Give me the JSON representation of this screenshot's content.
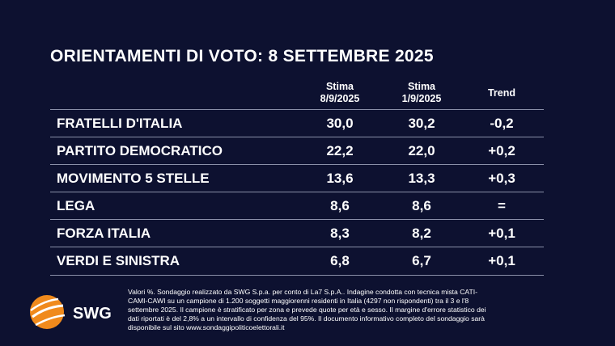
{
  "header": {
    "title": "ORIENTAMENTI DI VOTO: 8 SETTEMBRE 2025"
  },
  "table": {
    "columns": [
      [
        "Stima",
        "8/9/2025"
      ],
      [
        "Stima",
        "1/9/2025"
      ],
      [
        "Trend"
      ]
    ],
    "rows": [
      [
        "FRATELLI D'ITALIA",
        "30,0",
        "30,2",
        "-0,2"
      ],
      [
        "PARTITO DEMOCRATICO",
        "22,2",
        "22,0",
        "+0,2"
      ],
      [
        "MOVIMENTO 5 STELLE",
        "13,6",
        "13,3",
        "+0,3"
      ],
      [
        "LEGA",
        "8,6",
        "8,6",
        "="
      ],
      [
        "FORZA ITALIA",
        "8,3",
        "8,2",
        "+0,1"
      ],
      [
        "VERDI E SINISTRA",
        "6,8",
        "6,7",
        "+0,1"
      ]
    ]
  },
  "footnote": [
    "Valori %. Sondaggio realizzato da SWG S.p.a. per conto di La7 S.p.A.. Indagine condotta con tecnica mista CATI-",
    "CAMI-CAWI su un campione di 1.200 soggetti maggiorenni residenti in Italia (4297 non rispondenti) tra il 3 e l'8",
    "settembre 2025. Il campione è stratificato per zona e prevede quote per età e sesso. Il margine d'errore statistico dei",
    "dati riportati è del 2,8% a un intervallo di confidenza del 95%. Il documento informativo completo del sondaggio sarà",
    "disponibile sul sito www.sondaggipoliticoelettorali.it"
  ],
  "logo": {
    "text": "SWG"
  }
}
